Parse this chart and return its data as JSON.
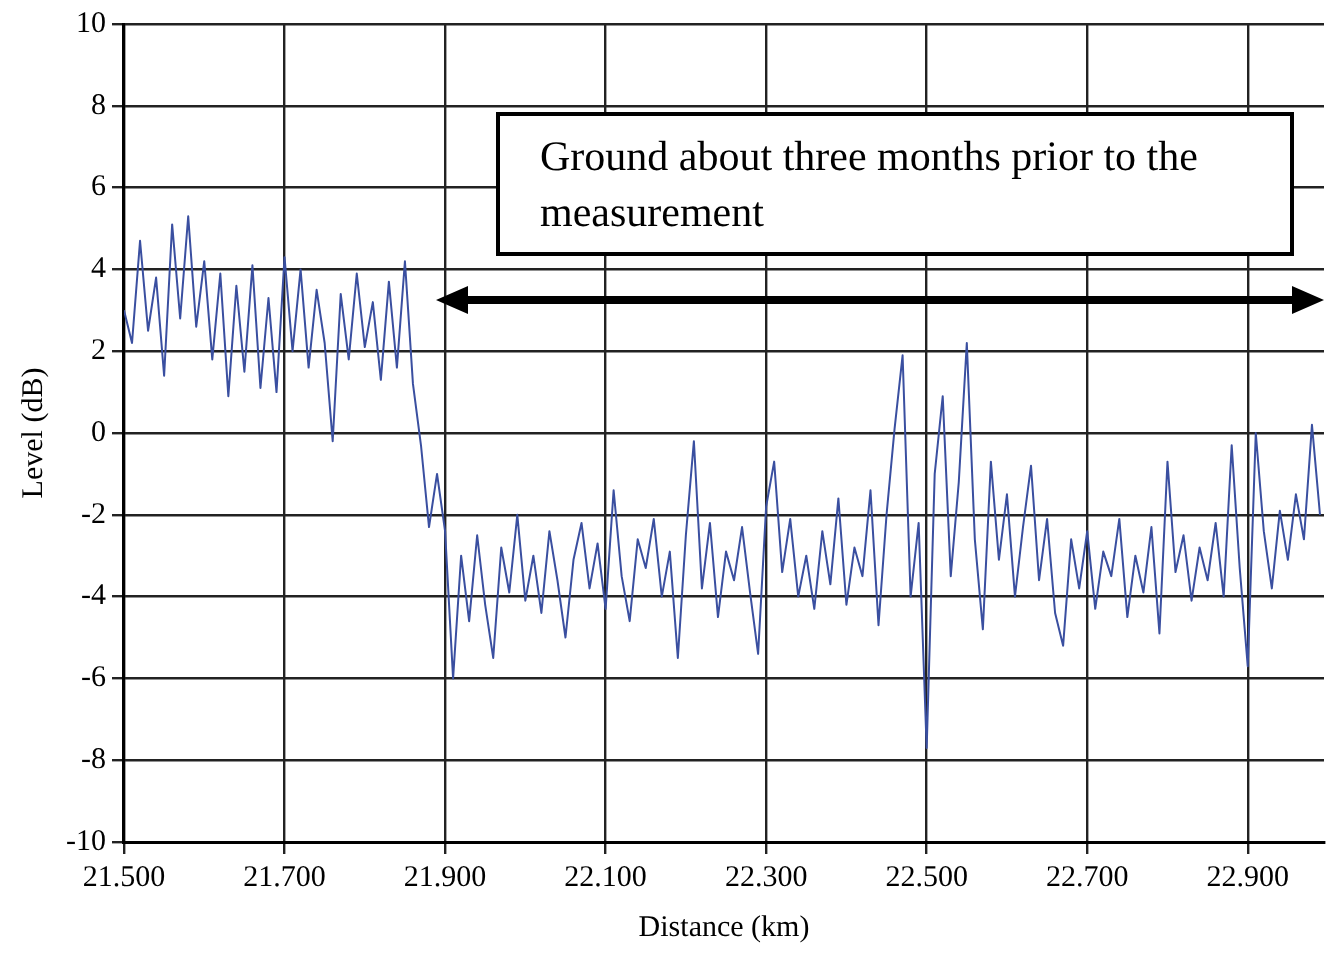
{
  "chart_data": {
    "type": "line",
    "xlabel": "Distance (km)",
    "ylabel": "Level (dB)",
    "annotations": [
      "Ground about three months prior to the measurement"
    ],
    "x": [
      21.5,
      21.51,
      21.52,
      21.53,
      21.54,
      21.55,
      21.56,
      21.57,
      21.58,
      21.59,
      21.6,
      21.61,
      21.62,
      21.63,
      21.64,
      21.65,
      21.66,
      21.67,
      21.68,
      21.69,
      21.7,
      21.71,
      21.72,
      21.73,
      21.74,
      21.75,
      21.76,
      21.77,
      21.78,
      21.79,
      21.8,
      21.81,
      21.82,
      21.83,
      21.84,
      21.85,
      21.86,
      21.87,
      21.88,
      21.89,
      21.9,
      21.91,
      21.92,
      21.93,
      21.94,
      21.95,
      21.96,
      21.97,
      21.98,
      21.99,
      22.0,
      22.01,
      22.02,
      22.03,
      22.04,
      22.05,
      22.06,
      22.07,
      22.08,
      22.09,
      22.1,
      22.11,
      22.12,
      22.13,
      22.14,
      22.15,
      22.16,
      22.17,
      22.18,
      22.19,
      22.2,
      22.21,
      22.22,
      22.23,
      22.24,
      22.25,
      22.26,
      22.27,
      22.28,
      22.29,
      22.3,
      22.31,
      22.32,
      22.33,
      22.34,
      22.35,
      22.36,
      22.37,
      22.38,
      22.39,
      22.4,
      22.41,
      22.42,
      22.43,
      22.44,
      22.45,
      22.46,
      22.47,
      22.48,
      22.49,
      22.5,
      22.51,
      22.52,
      22.53,
      22.54,
      22.55,
      22.56,
      22.57,
      22.58,
      22.59,
      22.6,
      22.61,
      22.62,
      22.63,
      22.64,
      22.65,
      22.66,
      22.67,
      22.68,
      22.69,
      22.7,
      22.71,
      22.72,
      22.73,
      22.74,
      22.75,
      22.76,
      22.77,
      22.78,
      22.79,
      22.8,
      22.81,
      22.82,
      22.83,
      22.84,
      22.85,
      22.86,
      22.87,
      22.88,
      22.89,
      22.9,
      22.91,
      22.92,
      22.93,
      22.94,
      22.95,
      22.96,
      22.97,
      22.98,
      22.99
    ],
    "series": [
      {
        "color": "#3a4fa0",
        "values": [
          3.0,
          2.2,
          4.7,
          2.5,
          3.8,
          1.4,
          5.1,
          2.8,
          5.3,
          2.6,
          4.2,
          1.8,
          3.9,
          0.9,
          3.6,
          1.5,
          4.1,
          1.1,
          3.3,
          1.0,
          4.3,
          2.0,
          4.0,
          1.6,
          3.5,
          2.2,
          -0.2,
          3.4,
          1.8,
          3.9,
          2.1,
          3.2,
          1.3,
          3.7,
          1.6,
          4.2,
          1.2,
          -0.3,
          -2.3,
          -1.0,
          -2.4,
          -6.0,
          -3.0,
          -4.6,
          -2.5,
          -4.2,
          -5.5,
          -2.8,
          -3.9,
          -2.0,
          -4.1,
          -3.0,
          -4.4,
          -2.4,
          -3.6,
          -5.0,
          -3.1,
          -2.2,
          -3.8,
          -2.7,
          -4.3,
          -1.4,
          -3.5,
          -4.6,
          -2.6,
          -3.3,
          -2.1,
          -4.0,
          -2.9,
          -5.5,
          -2.5,
          -0.2,
          -3.8,
          -2.2,
          -4.5,
          -2.9,
          -3.6,
          -2.3,
          -3.9,
          -5.4,
          -1.8,
          -0.7,
          -3.4,
          -2.1,
          -4.0,
          -3.0,
          -4.3,
          -2.4,
          -3.7,
          -1.6,
          -4.2,
          -2.8,
          -3.5,
          -1.4,
          -4.7,
          -2.0,
          0.1,
          1.9,
          -4.0,
          -2.2,
          -7.7,
          -1.0,
          0.9,
          -3.5,
          -1.2,
          2.2,
          -2.6,
          -4.8,
          -0.7,
          -3.1,
          -1.5,
          -4.0,
          -2.3,
          -0.8,
          -3.6,
          -2.1,
          -4.4,
          -5.2,
          -2.6,
          -3.8,
          -2.4,
          -4.3,
          -2.9,
          -3.5,
          -2.1,
          -4.5,
          -3.0,
          -3.9,
          -2.3,
          -4.9,
          -0.7,
          -3.4,
          -2.5,
          -4.1,
          -2.8,
          -3.6,
          -2.2,
          -4.0,
          -0.3,
          -3.3,
          -5.7,
          0.0,
          -2.4,
          -3.8,
          -1.9,
          -3.1,
          -1.5,
          -2.6,
          0.2,
          -2.0
        ]
      }
    ],
    "xlim": [
      21.5,
      22.995
    ],
    "xticks": [
      {
        "value": 21.5,
        "label": "21.500"
      },
      {
        "value": 21.7,
        "label": "21.700"
      },
      {
        "value": 21.9,
        "label": "21.900"
      },
      {
        "value": 22.1,
        "label": "22.100"
      },
      {
        "value": 22.3,
        "label": "22.300"
      },
      {
        "value": 22.5,
        "label": "22.500"
      },
      {
        "value": 22.7,
        "label": "22.700"
      },
      {
        "value": 22.9,
        "label": "22.900"
      }
    ],
    "ylim": [
      -10,
      10
    ],
    "yticks": [
      -10,
      -8,
      -6,
      -4,
      -2,
      0,
      2,
      4,
      6,
      8,
      10
    ],
    "grid": true
  }
}
